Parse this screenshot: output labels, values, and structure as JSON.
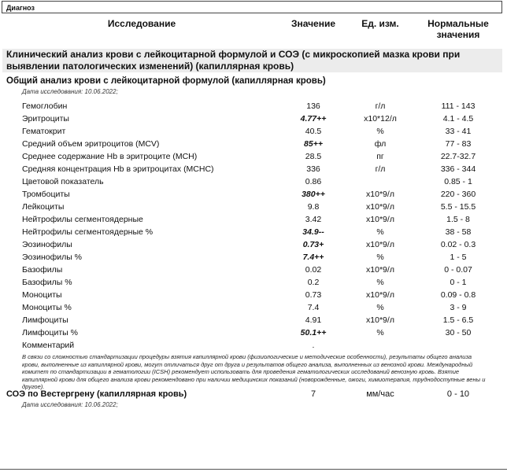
{
  "diagnosis_label": "Диагноз",
  "headers": {
    "name": "Исследование",
    "value": "Значение",
    "unit": "Ед. изм.",
    "norm_line1": "Нормальные",
    "norm_line2": "значения"
  },
  "section_title": "Клинический анализ крови с лейкоцитарной формулой и СОЭ (с микроскопией мазка крови при выявлении патологических изменений) (капиллярная кровь)",
  "subsection": {
    "title": "Общий анализ крови с лейкоцитарной формулой (капиллярная кровь)",
    "date": "Дата исследования: 10.06.2022;"
  },
  "rows": [
    {
      "name": "Гемоглобин",
      "value": "136",
      "unit": "г/л",
      "norm": "111 - 143",
      "flag": false
    },
    {
      "name": "Эритроциты",
      "value": "4.77++",
      "unit": "x10*12/л",
      "norm": "4.1 - 4.5",
      "flag": true
    },
    {
      "name": "Гематокрит",
      "value": "40.5",
      "unit": "%",
      "norm": "33 - 41",
      "flag": false
    },
    {
      "name": "Средний объем эритроцитов (MCV)",
      "value": "85++",
      "unit": "фл",
      "norm": "77 - 83",
      "flag": true
    },
    {
      "name": "Среднее содержание Hb в эритроците (MCH)",
      "value": "28.5",
      "unit": "пг",
      "norm": "22.7-32.7",
      "flag": false
    },
    {
      "name": "Средняя концентрация Hb в эритроцитах (MCHC)",
      "value": "336",
      "unit": "г/л",
      "norm": "336 - 344",
      "flag": false
    },
    {
      "name": "Цветовой показатель",
      "value": "0.86",
      "unit": "",
      "norm": "0.85 - 1",
      "flag": false
    },
    {
      "name": "Тромбоциты",
      "value": "380++",
      "unit": "x10*9/л",
      "norm": "220 - 360",
      "flag": true
    },
    {
      "name": "Лейкоциты",
      "value": "9.8",
      "unit": "x10*9/л",
      "norm": "5.5 - 15.5",
      "flag": false
    },
    {
      "name": "Нейтрофилы сегментоядерные",
      "value": "3.42",
      "unit": "x10*9/л",
      "norm": "1.5 - 8",
      "flag": false
    },
    {
      "name": "Нейтрофилы сегментоядерные %",
      "value": "34.9--",
      "unit": "%",
      "norm": "38 - 58",
      "flag": true
    },
    {
      "name": "Эозинофилы",
      "value": "0.73+",
      "unit": "x10*9/л",
      "norm": "0.02 - 0.3",
      "flag": true
    },
    {
      "name": "Эозинофилы %",
      "value": "7.4++",
      "unit": "%",
      "norm": "1 - 5",
      "flag": true
    },
    {
      "name": "Базофилы",
      "value": "0.02",
      "unit": "x10*9/л",
      "norm": "0 - 0.07",
      "flag": false
    },
    {
      "name": "Базофилы %",
      "value": "0.2",
      "unit": "%",
      "norm": "0 - 1",
      "flag": false
    },
    {
      "name": "Моноциты",
      "value": "0.73",
      "unit": "x10*9/л",
      "norm": "0.09 - 0.8",
      "flag": false
    },
    {
      "name": "Моноциты %",
      "value": "7.4",
      "unit": "%",
      "norm": "3 - 9",
      "flag": false
    },
    {
      "name": "Лимфоциты",
      "value": "4.91",
      "unit": "x10*9/л",
      "norm": "1.5 - 6.5",
      "flag": false
    },
    {
      "name": "Лимфоциты %",
      "value": "50.1++",
      "unit": "%",
      "norm": "30 - 50",
      "flag": true
    },
    {
      "name": "Комментарий",
      "value": ".",
      "unit": "",
      "norm": "",
      "flag": false
    }
  ],
  "note": "В связи со сложностью стандартизации процедуры взятия капиллярной крови (физиологические и методические особенности), результаты общего анализа крови, выполненные из капиллярной крови, могут отличаться друг от друга и результатов общего анализа, выполненных из венозной крови. Международный комитет по стандартизации в гематологии (ICSH) рекомендует использовать для проведения гематологических исследований венозную кровь. Взятие капиллярной крови для общего анализа крови рекомендовано при наличии медицинских показаний (новорожденные, ожоги, химиотерапия, труднодоступные вены и другое).",
  "soe": {
    "name": "СОЭ по Вестергрену (капиллярная кровь)",
    "value": "7",
    "unit": "мм/час",
    "norm": "0 - 10",
    "date": "Дата исследования: 10.06.2022;"
  }
}
